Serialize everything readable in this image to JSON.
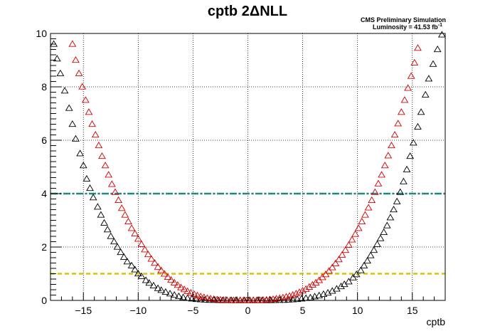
{
  "chart_data": {
    "type": "scatter",
    "title": "cptb 2ΔNLL",
    "info_line1": "CMS Preliminary Simulation",
    "info_line2_prefix": "Luminosity = 41.53 fb",
    "info_line2_sup": "-1",
    "xlabel": "cptb",
    "ylabel": "",
    "xlim": [
      -18,
      18
    ],
    "ylim": [
      0,
      10
    ],
    "x_ticks": [
      -15,
      -10,
      -5,
      0,
      5,
      10,
      15
    ],
    "y_ticks": [
      0,
      2,
      4,
      6,
      8,
      10
    ],
    "x_tick_labels": [
      "−15",
      "−10",
      "−5",
      "0",
      "5",
      "10",
      "15"
    ],
    "y_tick_labels": [
      "0",
      "2",
      "4",
      "6",
      "8",
      "10"
    ],
    "grid": true,
    "marker": "open-triangle",
    "series": [
      {
        "color": "#000000",
        "points": [
          [
            -17.7,
            9.6
          ],
          [
            -17.4,
            9.05
          ],
          [
            -17.1,
            8.5
          ],
          [
            -16.7,
            7.85
          ],
          [
            -16.3,
            7.2
          ],
          [
            -16.0,
            6.6
          ],
          [
            -15.7,
            6.05
          ],
          [
            -15.3,
            5.5
          ],
          [
            -15.0,
            5.05
          ],
          [
            -14.7,
            4.55
          ],
          [
            -14.4,
            4.2
          ],
          [
            -14.1,
            3.85
          ],
          [
            -13.7,
            3.5
          ],
          [
            -13.4,
            3.2
          ],
          [
            -13.1,
            2.9
          ],
          [
            -12.8,
            2.65
          ],
          [
            -12.5,
            2.4
          ],
          [
            -12.2,
            2.2
          ],
          [
            -11.9,
            2.0
          ],
          [
            -11.6,
            1.8
          ],
          [
            -11.3,
            1.62
          ],
          [
            -11.0,
            1.45
          ],
          [
            -10.6,
            1.3
          ],
          [
            -10.3,
            1.15
          ],
          [
            -10.0,
            1.0
          ],
          [
            -9.7,
            0.9
          ],
          [
            -9.3,
            0.75
          ],
          [
            -9.0,
            0.65
          ],
          [
            -8.6,
            0.55
          ],
          [
            -8.2,
            0.45
          ],
          [
            -7.9,
            0.38
          ],
          [
            -7.5,
            0.31
          ],
          [
            -7.1,
            0.25
          ],
          [
            -6.7,
            0.2
          ],
          [
            -6.3,
            0.15
          ],
          [
            -5.9,
            0.11
          ],
          [
            -5.5,
            0.08
          ],
          [
            -5.1,
            0.06
          ],
          [
            -4.7,
            0.04
          ],
          [
            -4.3,
            0.03
          ],
          [
            -3.9,
            0.02
          ],
          [
            -3.5,
            0.01
          ],
          [
            -3.1,
            0.01
          ],
          [
            -2.7,
            0.005
          ],
          [
            -2.3,
            0.0
          ],
          [
            -1.9,
            0.0
          ],
          [
            -1.5,
            0.0
          ],
          [
            -1.1,
            0.0
          ],
          [
            -0.7,
            0.0
          ],
          [
            -0.3,
            0.0
          ],
          [
            0.1,
            0.0
          ],
          [
            0.5,
            0.0
          ],
          [
            0.9,
            0.0
          ],
          [
            1.3,
            0.0
          ],
          [
            1.7,
            0.0
          ],
          [
            2.1,
            0.0
          ],
          [
            2.5,
            0.005
          ],
          [
            2.9,
            0.01
          ],
          [
            3.3,
            0.01
          ],
          [
            3.7,
            0.02
          ],
          [
            4.1,
            0.03
          ],
          [
            4.5,
            0.04
          ],
          [
            4.9,
            0.06
          ],
          [
            5.3,
            0.08
          ],
          [
            5.7,
            0.1
          ],
          [
            6.1,
            0.14
          ],
          [
            6.5,
            0.18
          ],
          [
            6.9,
            0.23
          ],
          [
            7.3,
            0.28
          ],
          [
            7.7,
            0.35
          ],
          [
            8.1,
            0.43
          ],
          [
            8.5,
            0.52
          ],
          [
            8.8,
            0.6
          ],
          [
            9.2,
            0.7
          ],
          [
            9.6,
            0.85
          ],
          [
            9.9,
            0.97
          ],
          [
            10.3,
            1.12
          ],
          [
            10.6,
            1.3
          ],
          [
            10.9,
            1.48
          ],
          [
            11.2,
            1.68
          ],
          [
            11.5,
            1.88
          ],
          [
            11.8,
            2.1
          ],
          [
            12.1,
            2.32
          ],
          [
            12.4,
            2.55
          ],
          [
            12.7,
            2.8
          ],
          [
            13.0,
            3.1
          ],
          [
            13.3,
            3.4
          ],
          [
            13.6,
            3.7
          ],
          [
            13.9,
            4.05
          ],
          [
            14.2,
            4.45
          ],
          [
            14.5,
            4.9
          ],
          [
            14.8,
            5.4
          ],
          [
            15.1,
            5.9
          ],
          [
            15.5,
            6.5
          ],
          [
            15.8,
            7.05
          ],
          [
            16.2,
            7.7
          ],
          [
            16.5,
            8.3
          ],
          [
            16.9,
            8.85
          ],
          [
            17.3,
            9.4
          ],
          [
            17.7,
            9.95
          ]
        ]
      },
      {
        "color": "#d40000",
        "points": [
          [
            -16.0,
            9.6
          ],
          [
            -15.7,
            9.0
          ],
          [
            -15.4,
            8.5
          ],
          [
            -15.1,
            8.0
          ],
          [
            -14.8,
            7.5
          ],
          [
            -14.5,
            7.05
          ],
          [
            -14.2,
            6.6
          ],
          [
            -13.9,
            6.2
          ],
          [
            -13.6,
            5.8
          ],
          [
            -13.3,
            5.4
          ],
          [
            -13.0,
            5.05
          ],
          [
            -12.7,
            4.7
          ],
          [
            -12.4,
            4.35
          ],
          [
            -12.1,
            4.05
          ],
          [
            -11.8,
            3.75
          ],
          [
            -11.5,
            3.45
          ],
          [
            -11.2,
            3.2
          ],
          [
            -10.9,
            2.95
          ],
          [
            -10.6,
            2.7
          ],
          [
            -10.3,
            2.5
          ],
          [
            -10.0,
            2.3
          ],
          [
            -9.7,
            2.1
          ],
          [
            -9.4,
            1.9
          ],
          [
            -9.1,
            1.72
          ],
          [
            -8.8,
            1.55
          ],
          [
            -8.5,
            1.4
          ],
          [
            -8.2,
            1.25
          ],
          [
            -7.9,
            1.12
          ],
          [
            -7.6,
            0.99
          ],
          [
            -7.3,
            0.87
          ],
          [
            -7.0,
            0.76
          ],
          [
            -6.7,
            0.66
          ],
          [
            -6.4,
            0.57
          ],
          [
            -6.1,
            0.48
          ],
          [
            -5.8,
            0.41
          ],
          [
            -5.5,
            0.34
          ],
          [
            -5.2,
            0.28
          ],
          [
            -4.9,
            0.23
          ],
          [
            -4.6,
            0.18
          ],
          [
            -4.3,
            0.14
          ],
          [
            -4.0,
            0.11
          ],
          [
            -3.7,
            0.08
          ],
          [
            -3.4,
            0.06
          ],
          [
            -3.1,
            0.04
          ],
          [
            -2.8,
            0.03
          ],
          [
            -2.5,
            0.02
          ],
          [
            -2.2,
            0.01
          ],
          [
            -1.9,
            0.005
          ],
          [
            -1.6,
            0.0
          ],
          [
            -1.3,
            0.0
          ],
          [
            -1.0,
            0.0
          ],
          [
            -0.7,
            0.0
          ],
          [
            -0.4,
            0.0
          ],
          [
            -0.1,
            0.0
          ],
          [
            0.2,
            0.0
          ],
          [
            0.5,
            0.0
          ],
          [
            0.8,
            0.0
          ],
          [
            1.1,
            0.005
          ],
          [
            1.4,
            0.01
          ],
          [
            1.7,
            0.02
          ],
          [
            2.0,
            0.03
          ],
          [
            2.3,
            0.04
          ],
          [
            2.6,
            0.06
          ],
          [
            2.9,
            0.08
          ],
          [
            3.2,
            0.1
          ],
          [
            3.5,
            0.13
          ],
          [
            3.8,
            0.16
          ],
          [
            4.1,
            0.2
          ],
          [
            4.4,
            0.25
          ],
          [
            4.7,
            0.3
          ],
          [
            5.0,
            0.36
          ],
          [
            5.3,
            0.42
          ],
          [
            5.6,
            0.5
          ],
          [
            5.9,
            0.58
          ],
          [
            6.2,
            0.66
          ],
          [
            6.5,
            0.75
          ],
          [
            6.8,
            0.86
          ],
          [
            7.1,
            0.97
          ],
          [
            7.4,
            1.1
          ],
          [
            7.7,
            1.23
          ],
          [
            8.0,
            1.38
          ],
          [
            8.3,
            1.53
          ],
          [
            8.6,
            1.7
          ],
          [
            8.9,
            1.88
          ],
          [
            9.2,
            2.07
          ],
          [
            9.5,
            2.27
          ],
          [
            9.8,
            2.48
          ],
          [
            10.1,
            2.7
          ],
          [
            10.4,
            2.95
          ],
          [
            10.7,
            3.2
          ],
          [
            11.0,
            3.47
          ],
          [
            11.3,
            3.75
          ],
          [
            11.6,
            4.05
          ],
          [
            11.9,
            4.37
          ],
          [
            12.2,
            4.7
          ],
          [
            12.5,
            5.05
          ],
          [
            12.8,
            5.42
          ],
          [
            13.1,
            5.8
          ],
          [
            13.4,
            6.2
          ],
          [
            13.7,
            6.62
          ],
          [
            14.0,
            7.05
          ],
          [
            14.3,
            7.5
          ],
          [
            14.6,
            7.95
          ],
          [
            14.9,
            8.4
          ],
          [
            15.2,
            8.9
          ],
          [
            15.5,
            9.45
          ]
        ]
      }
    ],
    "reference_lines": [
      {
        "y": 4,
        "color": "#1a8a8a",
        "style": "dash-dot"
      },
      {
        "y": 1,
        "color": "#d8c400",
        "style": "dashed"
      }
    ]
  }
}
